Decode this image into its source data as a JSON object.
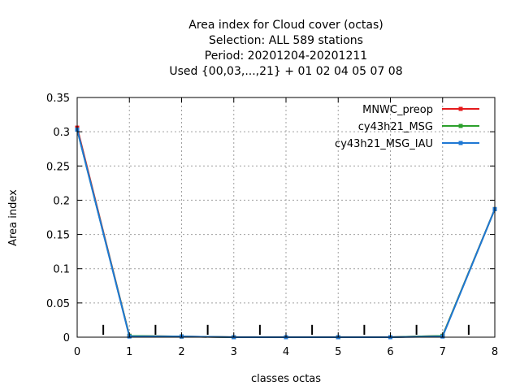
{
  "chart_data": {
    "type": "line",
    "title_lines": [
      "Area index  for Cloud cover (octas)",
      "Selection: ALL    589 stations",
      "Period: 20201204-20201211",
      "Used {00,03,...,21} + 01 02 04 05 07 08"
    ],
    "xlabel": "classes octas",
    "ylabel": "Area index",
    "xlim": [
      0,
      8
    ],
    "ylim": [
      0,
      0.35
    ],
    "x_ticks": [
      "0",
      "1",
      "2",
      "3",
      "4",
      "5",
      "6",
      "7",
      "8"
    ],
    "y_ticks": [
      "0",
      "0.05",
      "0.1",
      "0.15",
      "0.2",
      "0.25",
      "0.3",
      "0.35"
    ],
    "grid": true,
    "legend_position": "top-right",
    "x": [
      0,
      1,
      2,
      3,
      4,
      5,
      6,
      7,
      8
    ],
    "series": [
      {
        "name": "MNWC_preop",
        "color": "#e41a1c",
        "values": [
          0.306,
          0.002,
          0.001,
          0.0,
          0.0,
          0.0,
          0.0,
          0.002,
          0.187
        ]
      },
      {
        "name": "cy43h21_MSG",
        "color": "#2ca02c",
        "values": [
          0.303,
          0.002,
          0.001,
          0.0,
          0.0,
          0.0,
          0.0,
          0.002,
          0.187
        ]
      },
      {
        "name": "cy43h21_MSG_IAU",
        "color": "#1f78d4",
        "values": [
          0.303,
          0.001,
          0.001,
          0.0,
          0.0,
          0.0,
          0.0,
          0.001,
          0.187
        ]
      }
    ],
    "class_markers": {
      "x": [
        0.5,
        1.5,
        2.5,
        3.5,
        4.5,
        5.5,
        6.5,
        7.5
      ],
      "height": 0.018
    }
  }
}
